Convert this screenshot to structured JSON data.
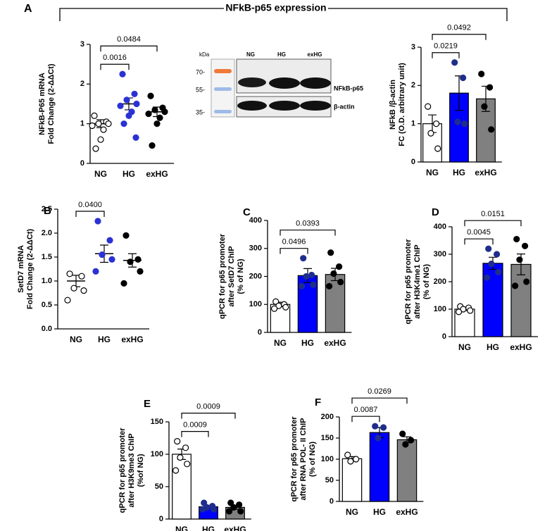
{
  "figure": {
    "label": "A",
    "title": "NFkB-p65 expression"
  },
  "blot": {
    "unit": "kDa",
    "ladder": [
      "70-",
      "55-",
      "35-"
    ],
    "lanes": [
      "NG",
      "HG",
      "exHG"
    ],
    "bands": [
      "NFkB-p65",
      "β-actin"
    ]
  },
  "chart_data": [
    {
      "type": "dot",
      "ylabel": [
        "NFkB-P65 mRNA",
        "Fold Change (2-ΔΔCt)"
      ],
      "categories": [
        "NG",
        "HG",
        "exHG"
      ],
      "points": [
        [
          1.2,
          1.05,
          1.0,
          1.0,
          0.95,
          0.85,
          0.6,
          0.37
        ],
        [
          2.25,
          1.75,
          1.6,
          1.5,
          1.45,
          1.3,
          1.2,
          1.0,
          0.65
        ],
        [
          1.7,
          1.4,
          1.35,
          1.3,
          1.25,
          1.15,
          1.0,
          0.45
        ]
      ],
      "means": [
        1.0,
        1.5,
        1.3
      ],
      "errors": [
        0.1,
        0.15,
        0.12
      ],
      "point_colors": [
        "#ffffff",
        "#2a32d4",
        "#000000"
      ],
      "ylim": [
        0,
        3
      ],
      "yticks": [
        0,
        1,
        2,
        3
      ],
      "p_values": [
        "0.0016",
        "0.0484"
      ]
    },
    {
      "type": "bar",
      "ylabel": [
        "NFkB /β-actin",
        "FC (O.D. arbitrary unit)"
      ],
      "categories": [
        "NG",
        "HG",
        "exHG"
      ],
      "values": [
        1.0,
        1.8,
        1.65
      ],
      "errors": [
        0.23,
        0.45,
        0.33
      ],
      "points": [
        [
          1.45,
          1.0,
          0.75,
          0.35
        ],
        [
          2.6,
          2.2,
          1.05,
          1.0
        ],
        [
          2.3,
          1.95,
          1.45,
          0.85
        ]
      ],
      "bar_colors": [
        "#ffffff",
        "#0000ff",
        "#808080"
      ],
      "point_colors": [
        "#ffffff",
        "#1f2e8c",
        "#000000"
      ],
      "ylim": [
        0,
        3
      ],
      "yticks": [
        0,
        1,
        2,
        3
      ],
      "p_values": [
        "0.0219",
        "0.0492"
      ]
    },
    {
      "type": "dot",
      "label": "B",
      "ylabel": [
        "SetD7 mRNA",
        "Fold Change (2-ΔΔCt)"
      ],
      "categories": [
        "NG",
        "HG",
        "exHG"
      ],
      "points": [
        [
          1.15,
          1.1,
          0.85,
          0.8,
          0.6
        ],
        [
          2.25,
          1.85,
          1.55,
          1.45,
          1.2
        ],
        [
          1.95,
          1.45,
          1.4,
          1.2,
          0.95
        ]
      ],
      "means": [
        1.0,
        1.57,
        1.43
      ],
      "errors": [
        0.12,
        0.18,
        0.14
      ],
      "point_colors": [
        "#ffffff",
        "#2a32d4",
        "#000000"
      ],
      "ylim": [
        0,
        2.5
      ],
      "yticks": [
        {
          "value": 0,
          "label": "0.0"
        },
        {
          "value": 0.5,
          "label": "0.5"
        },
        {
          "value": 1,
          "label": "1.0"
        },
        {
          "value": 1.5,
          "label": "1.5"
        },
        {
          "value": 2,
          "label": "2.0"
        },
        {
          "value": 2.5,
          "label": "2.5"
        }
      ],
      "p_values": [
        "0.0400"
      ]
    },
    {
      "type": "bar",
      "label": "C",
      "ylabel": [
        "qPCR for p65 promoter",
        "after SetD7 ChIP",
        "(% of NG)"
      ],
      "categories": [
        "NG",
        "HG",
        "exHG"
      ],
      "values": [
        100,
        203,
        207
      ],
      "errors": [
        8,
        25,
        22
      ],
      "points": [
        [
          110,
          100,
          95,
          90,
          85
        ],
        [
          265,
          205,
          200,
          170,
          165
        ],
        [
          285,
          235,
          210,
          180,
          165
        ]
      ],
      "bar_colors": [
        "#ffffff",
        "#0000ff",
        "#808080"
      ],
      "point_colors": [
        "#ffffff",
        "#1f2e8c",
        "#000000"
      ],
      "ylim": [
        0,
        400
      ],
      "yticks": [
        0,
        100,
        200,
        300,
        400
      ],
      "p_values": [
        "0.0496",
        "0.0393"
      ]
    },
    {
      "type": "bar",
      "label": "D",
      "ylabel": [
        "qPCR for p65 promoter",
        "after H3K4me1 ChIP",
        "(% of NG)"
      ],
      "categories": [
        "NG",
        "HG",
        "exHG"
      ],
      "values": [
        100,
        267,
        263
      ],
      "errors": [
        5,
        22,
        38
      ],
      "points": [
        [
          110,
          105,
          100,
          95,
          90
        ],
        [
          320,
          300,
          265,
          235,
          215
        ],
        [
          355,
          330,
          280,
          200,
          185
        ]
      ],
      "bar_colors": [
        "#ffffff",
        "#0000ff",
        "#808080"
      ],
      "point_colors": [
        "#ffffff",
        "#1f2e8c",
        "#000000"
      ],
      "ylim": [
        0,
        400
      ],
      "yticks": [
        0,
        100,
        200,
        300,
        400
      ],
      "p_values": [
        "0.0045",
        "0.0151"
      ]
    },
    {
      "type": "bar",
      "label": "E",
      "ylabel": [
        "qPCR for p65 promoter",
        "after H3K9me3 ChIP",
        "(%of NG)"
      ],
      "categories": [
        "NG",
        "HG",
        "exHG"
      ],
      "values": [
        100,
        19,
        18
      ],
      "errors": [
        8,
        2,
        3
      ],
      "points": [
        [
          120,
          110,
          95,
          85,
          75
        ],
        [
          25,
          20,
          18,
          15,
          15
        ],
        [
          25,
          22,
          18,
          12,
          12
        ]
      ],
      "bar_colors": [
        "#ffffff",
        "#0000ff",
        "#808080"
      ],
      "point_colors": [
        "#ffffff",
        "#1f2e8c",
        "#000000"
      ],
      "ylim": [
        0,
        150
      ],
      "yticks": [
        0,
        50,
        100,
        150
      ],
      "p_values": [
        "0.0009",
        "0.0009"
      ]
    },
    {
      "type": "bar",
      "label": "F",
      "ylabel": [
        "qPCR for p65 promoter",
        "after RNA POL- II ChIP",
        "(% of NG)"
      ],
      "categories": [
        "NG",
        "HG",
        "exHG"
      ],
      "values": [
        101,
        163,
        146
      ],
      "errors": [
        5,
        12,
        7
      ],
      "points": [
        [
          110,
          100,
          95
        ],
        [
          178,
          175,
          150
        ],
        [
          160,
          145,
          135
        ]
      ],
      "bar_colors": [
        "#ffffff",
        "#0000ff",
        "#808080"
      ],
      "point_colors": [
        "#ffffff",
        "#1f2e8c",
        "#000000"
      ],
      "ylim": [
        0,
        200
      ],
      "yticks": [
        0,
        50,
        100,
        150,
        200
      ],
      "p_values": [
        "0.0087",
        "0.0269"
      ]
    }
  ]
}
